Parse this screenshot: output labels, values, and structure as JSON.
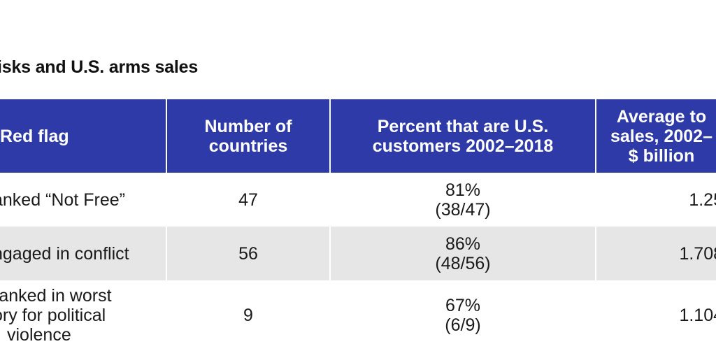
{
  "title": "isks and U.S. arms sales",
  "header": {
    "col1": "Red flag",
    "col2_line1": "Number of",
    "col2_line2": "countries",
    "col3_line1": "Percent that are U.S.",
    "col3_line2": "customers 2002–2018",
    "col4_line1": "Average to",
    "col4_line2": "sales, 2002–",
    "col4_line3": "$ billion"
  },
  "rows": [
    {
      "flag_lines": [
        "anked “Not Free”"
      ],
      "count": "47",
      "percent": "81%",
      "fraction": "(38/47)",
      "average": "1.25"
    },
    {
      "flag_lines": [
        "ngaged in conflict"
      ],
      "count": "56",
      "percent": "86%",
      "fraction": "(48/56)",
      "average": "1.708"
    },
    {
      "flag_lines": [
        "ranked in worst",
        "ory for political",
        "violence"
      ],
      "count": "9",
      "percent": "67%",
      "fraction": "(6/9)",
      "average": "1.104"
    }
  ],
  "colors": {
    "header_bg": "#2e3aa8",
    "header_text": "#ffffff",
    "stripe_bg": "#e6e6e6"
  }
}
